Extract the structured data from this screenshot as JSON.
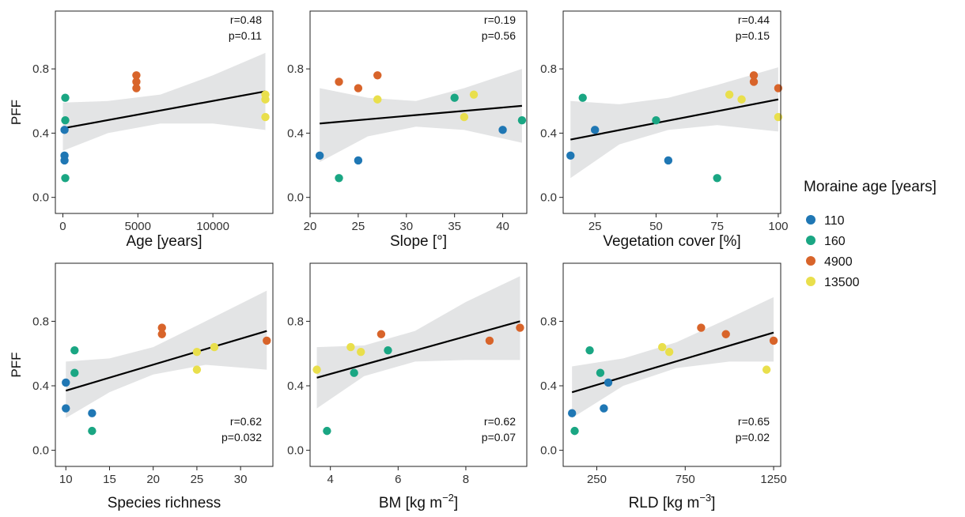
{
  "legend": {
    "title": "Moraine age [years]",
    "items": [
      {
        "label": "110",
        "color": "#1f77b4"
      },
      {
        "label": "160",
        "color": "#1aa683"
      },
      {
        "label": "4900",
        "color": "#d8642a"
      },
      {
        "label": "13500",
        "color": "#e9df4c"
      }
    ]
  },
  "colors": {
    "110": "#1f77b4",
    "160": "#1aa683",
    "4900": "#d8642a",
    "13500": "#e9df4c",
    "ribbon": "#e3e4e5",
    "line": "#000000"
  },
  "chart_data": [
    {
      "type": "scatter",
      "xlabel": "Age [years]",
      "ylabel": "PFF",
      "xlim": [
        -500,
        14000
      ],
      "ylim": [
        -0.1,
        1.16
      ],
      "xticks": [
        0,
        5000,
        10000
      ],
      "yticks": [
        0.0,
        0.4,
        0.8
      ],
      "ytick_labels": [
        "0.0",
        "0.4",
        "0.8"
      ],
      "stats": {
        "r": "r=0.48",
        "p": "p=0.11",
        "position": "top-right"
      },
      "points": [
        {
          "x": 110,
          "y": 0.42,
          "group": "110"
        },
        {
          "x": 110,
          "y": 0.26,
          "group": "110"
        },
        {
          "x": 110,
          "y": 0.23,
          "group": "110"
        },
        {
          "x": 160,
          "y": 0.62,
          "group": "160"
        },
        {
          "x": 160,
          "y": 0.48,
          "group": "160"
        },
        {
          "x": 160,
          "y": 0.12,
          "group": "160"
        },
        {
          "x": 4900,
          "y": 0.76,
          "group": "4900"
        },
        {
          "x": 4900,
          "y": 0.72,
          "group": "4900"
        },
        {
          "x": 4900,
          "y": 0.68,
          "group": "4900"
        },
        {
          "x": 13500,
          "y": 0.64,
          "group": "13500"
        },
        {
          "x": 13500,
          "y": 0.61,
          "group": "13500"
        },
        {
          "x": 13500,
          "y": 0.5,
          "group": "13500"
        }
      ],
      "fit": {
        "x0": 0,
        "y0": 0.43,
        "x1": 13500,
        "y1": 0.66
      },
      "ribbon": [
        {
          "x": 0,
          "lo": 0.29,
          "hi": 0.59
        },
        {
          "x": 3000,
          "lo": 0.4,
          "hi": 0.6
        },
        {
          "x": 6500,
          "lo": 0.46,
          "hi": 0.64
        },
        {
          "x": 10000,
          "lo": 0.46,
          "hi": 0.76
        },
        {
          "x": 13500,
          "lo": 0.42,
          "hi": 0.9
        }
      ]
    },
    {
      "type": "scatter",
      "xlabel": "Slope [°]",
      "xlim": [
        20,
        42.5
      ],
      "ylim": [
        -0.1,
        1.16
      ],
      "xticks": [
        20,
        25,
        30,
        35,
        40
      ],
      "yticks": [
        0.0,
        0.4,
        0.8
      ],
      "ytick_labels": [
        "0.0",
        "0.4",
        "0.8"
      ],
      "stats": {
        "r": "r=0.19",
        "p": "p=0.56",
        "position": "top-right"
      },
      "points": [
        {
          "x": 21,
          "y": 0.26,
          "group": "110"
        },
        {
          "x": 25,
          "y": 0.23,
          "group": "110"
        },
        {
          "x": 40,
          "y": 0.42,
          "group": "110"
        },
        {
          "x": 23,
          "y": 0.12,
          "group": "160"
        },
        {
          "x": 35,
          "y": 0.62,
          "group": "160"
        },
        {
          "x": 42,
          "y": 0.48,
          "group": "160"
        },
        {
          "x": 23,
          "y": 0.72,
          "group": "4900"
        },
        {
          "x": 25,
          "y": 0.68,
          "group": "4900"
        },
        {
          "x": 27,
          "y": 0.76,
          "group": "4900"
        },
        {
          "x": 27,
          "y": 0.61,
          "group": "13500"
        },
        {
          "x": 36,
          "y": 0.5,
          "group": "13500"
        },
        {
          "x": 37,
          "y": 0.64,
          "group": "13500"
        }
      ],
      "fit": {
        "x0": 21,
        "y0": 0.46,
        "x1": 42,
        "y1": 0.57
      },
      "ribbon": [
        {
          "x": 21,
          "lo": 0.22,
          "hi": 0.68
        },
        {
          "x": 26,
          "lo": 0.38,
          "hi": 0.62
        },
        {
          "x": 31,
          "lo": 0.44,
          "hi": 0.6
        },
        {
          "x": 36,
          "lo": 0.42,
          "hi": 0.68
        },
        {
          "x": 42,
          "lo": 0.34,
          "hi": 0.8
        }
      ]
    },
    {
      "type": "scatter",
      "xlabel": "Vegetation cover [%]",
      "xlim": [
        12,
        101
      ],
      "ylim": [
        -0.1,
        1.16
      ],
      "xticks": [
        25,
        50,
        75,
        100
      ],
      "yticks": [
        0.0,
        0.4,
        0.8
      ],
      "ytick_labels": [
        "0.0",
        "0.4",
        "0.8"
      ],
      "stats": {
        "r": "r=0.44",
        "p": "p=0.15",
        "position": "top-right"
      },
      "points": [
        {
          "x": 15,
          "y": 0.26,
          "group": "110"
        },
        {
          "x": 25,
          "y": 0.42,
          "group": "110"
        },
        {
          "x": 55,
          "y": 0.23,
          "group": "110"
        },
        {
          "x": 20,
          "y": 0.62,
          "group": "160"
        },
        {
          "x": 50,
          "y": 0.48,
          "group": "160"
        },
        {
          "x": 75,
          "y": 0.12,
          "group": "160"
        },
        {
          "x": 90,
          "y": 0.76,
          "group": "4900"
        },
        {
          "x": 90,
          "y": 0.72,
          "group": "4900"
        },
        {
          "x": 100,
          "y": 0.68,
          "group": "4900"
        },
        {
          "x": 80,
          "y": 0.64,
          "group": "13500"
        },
        {
          "x": 85,
          "y": 0.61,
          "group": "13500"
        },
        {
          "x": 100,
          "y": 0.5,
          "group": "13500"
        }
      ],
      "fit": {
        "x0": 15,
        "y0": 0.36,
        "x1": 100,
        "y1": 0.61
      },
      "ribbon": [
        {
          "x": 15,
          "lo": 0.12,
          "hi": 0.6
        },
        {
          "x": 35,
          "lo": 0.33,
          "hi": 0.58
        },
        {
          "x": 55,
          "lo": 0.42,
          "hi": 0.62
        },
        {
          "x": 75,
          "lo": 0.45,
          "hi": 0.7
        },
        {
          "x": 100,
          "lo": 0.41,
          "hi": 0.81
        }
      ]
    },
    {
      "type": "scatter",
      "xlabel": "Species richness",
      "ylabel": "PFF",
      "xlim": [
        8.8,
        33.7
      ],
      "ylim": [
        -0.1,
        1.16
      ],
      "xticks": [
        10,
        15,
        20,
        25,
        30
      ],
      "yticks": [
        0.0,
        0.4,
        0.8
      ],
      "ytick_labels": [
        "0.0",
        "0.4",
        "0.8"
      ],
      "stats": {
        "r": "r=0.62",
        "p": "p=0.032",
        "position": "bottom-right"
      },
      "points": [
        {
          "x": 10,
          "y": 0.42,
          "group": "110"
        },
        {
          "x": 10,
          "y": 0.26,
          "group": "110"
        },
        {
          "x": 13,
          "y": 0.23,
          "group": "110"
        },
        {
          "x": 11,
          "y": 0.62,
          "group": "160"
        },
        {
          "x": 11,
          "y": 0.48,
          "group": "160"
        },
        {
          "x": 13,
          "y": 0.12,
          "group": "160"
        },
        {
          "x": 21,
          "y": 0.76,
          "group": "4900"
        },
        {
          "x": 21,
          "y": 0.72,
          "group": "4900"
        },
        {
          "x": 33,
          "y": 0.68,
          "group": "4900"
        },
        {
          "x": 25,
          "y": 0.61,
          "group": "13500"
        },
        {
          "x": 25,
          "y": 0.5,
          "group": "13500"
        },
        {
          "x": 27,
          "y": 0.64,
          "group": "13500"
        }
      ],
      "fit": {
        "x0": 10,
        "y0": 0.37,
        "x1": 33,
        "y1": 0.74
      },
      "ribbon": [
        {
          "x": 10,
          "lo": 0.2,
          "hi": 0.55
        },
        {
          "x": 15,
          "lo": 0.36,
          "hi": 0.57
        },
        {
          "x": 20,
          "lo": 0.47,
          "hi": 0.64
        },
        {
          "x": 26,
          "lo": 0.53,
          "hi": 0.8
        },
        {
          "x": 33,
          "lo": 0.5,
          "hi": 0.99
        }
      ]
    },
    {
      "type": "scatter",
      "xlabel": "BM [kg m⁻²]",
      "xlim": [
        3.4,
        9.8
      ],
      "ylim": [
        -0.1,
        1.16
      ],
      "xticks": [
        4,
        6,
        8
      ],
      "yticks": [
        0.0,
        0.4,
        0.8
      ],
      "ytick_labels": [
        "0.0",
        "0.4",
        "0.8"
      ],
      "stats": {
        "r": "r=0.62",
        "p": "p=0.07",
        "position": "bottom-right"
      },
      "points": [
        {
          "x": 3.9,
          "y": 0.12,
          "group": "160"
        },
        {
          "x": 4.7,
          "y": 0.48,
          "group": "160"
        },
        {
          "x": 5.7,
          "y": 0.62,
          "group": "160"
        },
        {
          "x": 5.5,
          "y": 0.72,
          "group": "4900"
        },
        {
          "x": 8.7,
          "y": 0.68,
          "group": "4900"
        },
        {
          "x": 9.6,
          "y": 0.76,
          "group": "4900"
        },
        {
          "x": 3.6,
          "y": 0.5,
          "group": "13500"
        },
        {
          "x": 4.6,
          "y": 0.64,
          "group": "13500"
        },
        {
          "x": 4.9,
          "y": 0.61,
          "group": "13500"
        }
      ],
      "fit": {
        "x0": 3.6,
        "y0": 0.45,
        "x1": 9.6,
        "y1": 0.8
      },
      "ribbon": [
        {
          "x": 3.6,
          "lo": 0.26,
          "hi": 0.64
        },
        {
          "x": 5.0,
          "lo": 0.46,
          "hi": 0.65
        },
        {
          "x": 6.5,
          "lo": 0.55,
          "hi": 0.74
        },
        {
          "x": 8.0,
          "lo": 0.56,
          "hi": 0.92
        },
        {
          "x": 9.6,
          "lo": 0.56,
          "hi": 1.08
        }
      ]
    },
    {
      "type": "scatter",
      "xlabel": "RLD [kg m⁻³]",
      "xlim": [
        60,
        1290
      ],
      "ylim": [
        -0.1,
        1.16
      ],
      "xticks": [
        250,
        750,
        1250
      ],
      "yticks": [
        0.0,
        0.4,
        0.8
      ],
      "ytick_labels": [
        "0.0",
        "0.4",
        "0.8"
      ],
      "stats": {
        "r": "r=0.65",
        "p": "p=0.02",
        "position": "bottom-right"
      },
      "points": [
        {
          "x": 110,
          "y": 0.23,
          "group": "110"
        },
        {
          "x": 290,
          "y": 0.26,
          "group": "110"
        },
        {
          "x": 315,
          "y": 0.42,
          "group": "110"
        },
        {
          "x": 125,
          "y": 0.12,
          "group": "160"
        },
        {
          "x": 210,
          "y": 0.62,
          "group": "160"
        },
        {
          "x": 270,
          "y": 0.48,
          "group": "160"
        },
        {
          "x": 840,
          "y": 0.76,
          "group": "4900"
        },
        {
          "x": 980,
          "y": 0.72,
          "group": "4900"
        },
        {
          "x": 1250,
          "y": 0.68,
          "group": "4900"
        },
        {
          "x": 620,
          "y": 0.64,
          "group": "13500"
        },
        {
          "x": 660,
          "y": 0.61,
          "group": "13500"
        },
        {
          "x": 1210,
          "y": 0.5,
          "group": "13500"
        }
      ],
      "fit": {
        "x0": 110,
        "y0": 0.36,
        "x1": 1250,
        "y1": 0.73
      },
      "ribbon": [
        {
          "x": 110,
          "lo": 0.2,
          "hi": 0.52
        },
        {
          "x": 400,
          "lo": 0.4,
          "hi": 0.57
        },
        {
          "x": 700,
          "lo": 0.51,
          "hi": 0.67
        },
        {
          "x": 1000,
          "lo": 0.55,
          "hi": 0.82
        },
        {
          "x": 1250,
          "lo": 0.55,
          "hi": 0.95
        }
      ]
    }
  ]
}
